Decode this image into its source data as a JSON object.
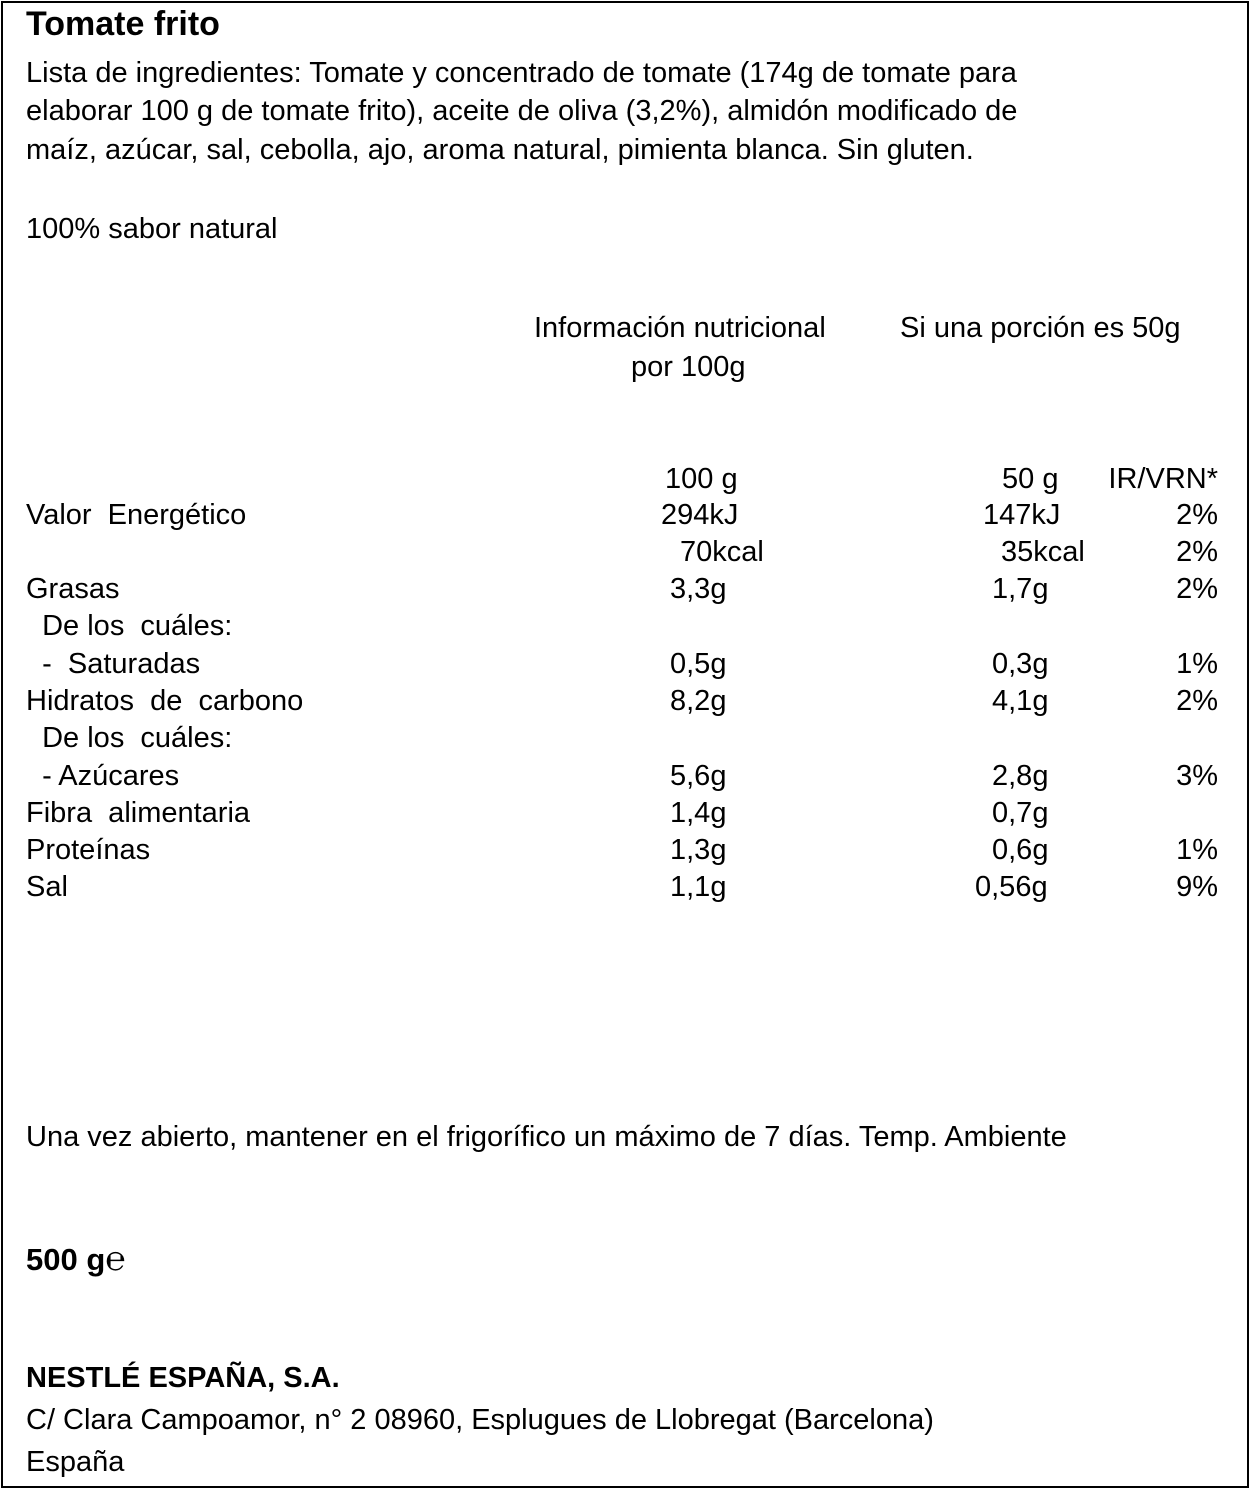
{
  "title": "Tomate frito",
  "ingredients": [
    "Lista de ingredientes: Tomate y concentrado de tomate (174g de tomate para",
    "elaborar 100 g de tomate frito), aceite de oliva (3,2%), almidón modificado de",
    "maíz, azúcar, sal, cebolla, ajo, aroma natural, pimienta blanca. Sin gluten."
  ],
  "claim": "100% sabor natural",
  "nutrition": {
    "header_100": [
      "Información nutricional",
      "por 100g"
    ],
    "header_portion": "Si una porción es 50g",
    "col_100": "100 g",
    "col_50": "50 g",
    "col_ir": "IR/VRN*",
    "rows": [
      {
        "label": "Valor  Energético",
        "v100": "294kJ",
        "v50": "147kJ",
        "ir": "2%"
      },
      {
        "label": "",
        "v100": "70kcal",
        "v50": "35kcal",
        "ir": "2%"
      },
      {
        "label": "Grasas",
        "v100": "3,3g",
        "v50": "1,7g",
        "ir": "2%"
      },
      {
        "label": "  De los  cuáles:",
        "v100": "",
        "v50": "",
        "ir": ""
      },
      {
        "label": "  -  Saturadas",
        "v100": "0,5g",
        "v50": "0,3g",
        "ir": "1%"
      },
      {
        "label": "Hidratos  de  carbono",
        "v100": "8,2g",
        "v50": "4,1g",
        "ir": "2%"
      },
      {
        "label": "  De los  cuáles:",
        "v100": "",
        "v50": "",
        "ir": ""
      },
      {
        "label": "  - Azúcares",
        "v100": "5,6g",
        "v50": "2,8g",
        "ir": "3%"
      },
      {
        "label": "Fibra  alimentaria",
        "v100": "1,4g",
        "v50": "0,7g",
        "ir": ""
      },
      {
        "label": "Proteínas",
        "v100": "1,3g",
        "v50": "0,6g",
        "ir": "1%"
      },
      {
        "label": "Sal",
        "v100": "1,1g",
        "v50": "0,56g",
        "ir": "9%"
      }
    ]
  },
  "storage": "Una vez abierto, mantener en el frigorífico un máximo de 7 días. Temp. Ambiente",
  "net_weight": "500 g",
  "estimated_mark": "℮",
  "company": "NESTLÉ ESPAÑA, S.A.",
  "address": "C/ Clara Campoamor, n° 2 08960, Esplugues de Llobregat (Barcelona)",
  "country": "España"
}
